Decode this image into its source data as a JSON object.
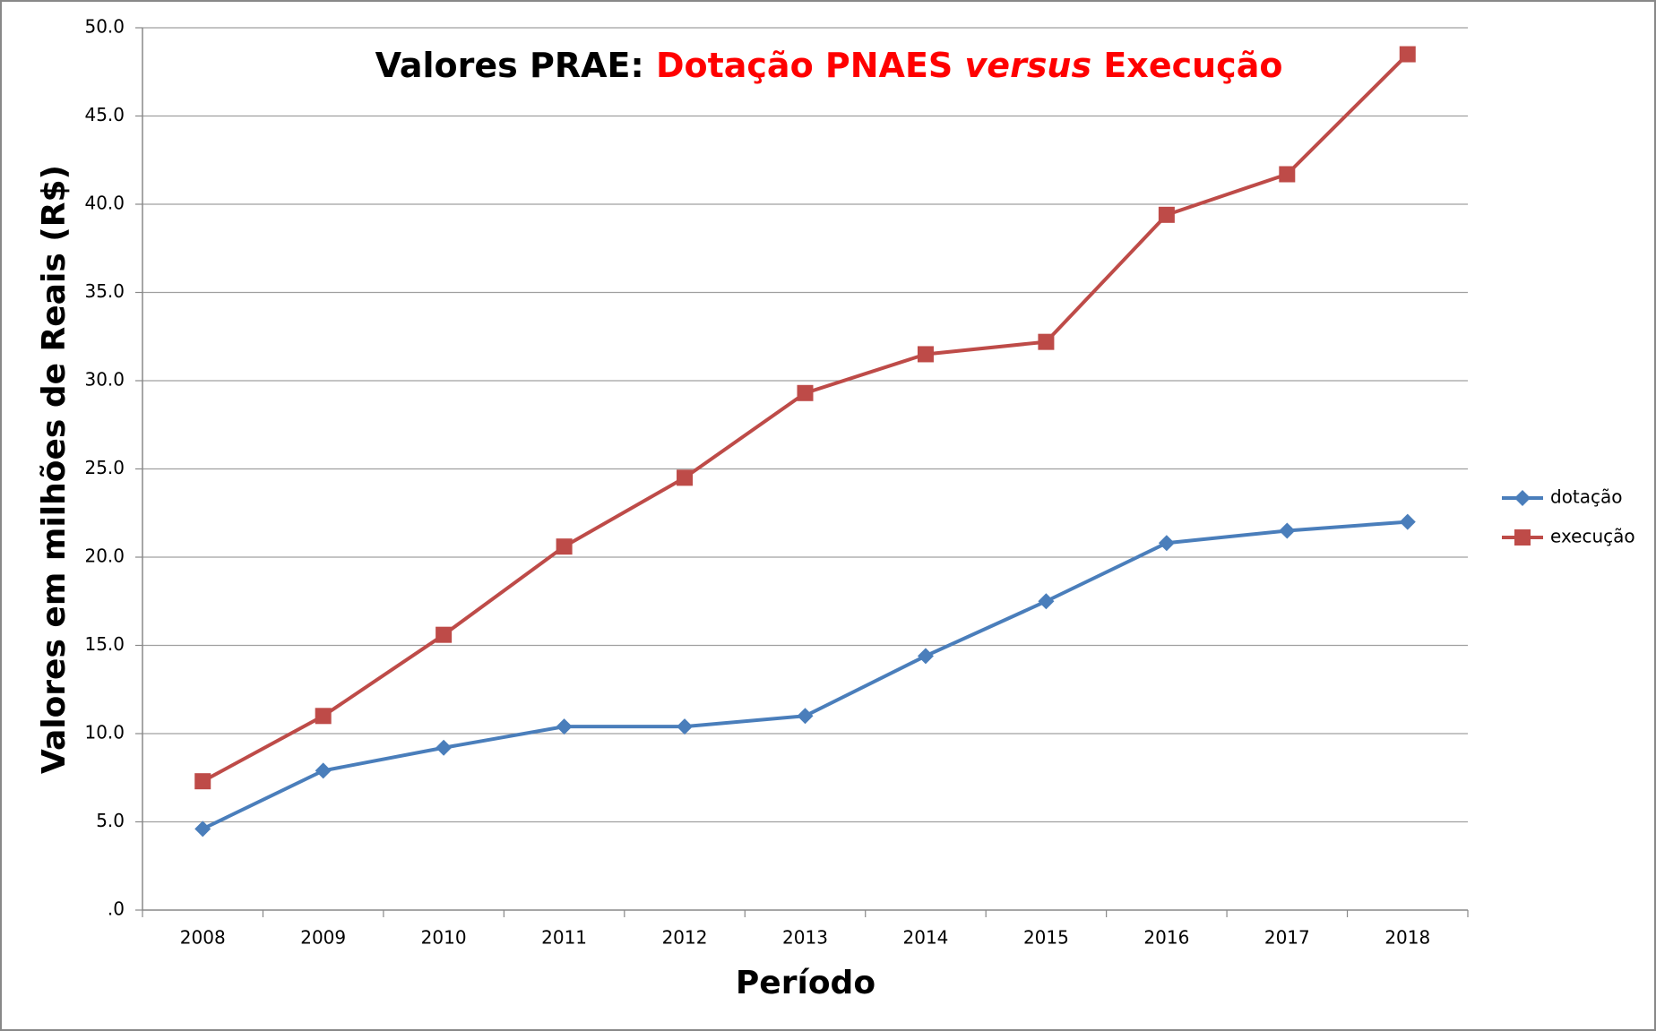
{
  "chart_data": {
    "type": "line",
    "title": [
      "Valores PRAE:",
      "Dotação PNAES",
      "versus",
      "Execução"
    ],
    "xlabel": "Período",
    "ylabel": "Valores em milhões de Reais (R$)",
    "categories": [
      "2008",
      "2009",
      "2010",
      "2011",
      "2012",
      "2013",
      "2014",
      "2015",
      "2016",
      "2017",
      "2018"
    ],
    "series": [
      {
        "name": "dotação",
        "color": "#4a7ebb",
        "marker": "diamond",
        "values": [
          4.6,
          7.9,
          9.2,
          10.4,
          10.4,
          11.0,
          14.4,
          17.5,
          20.8,
          21.5,
          22.0
        ]
      },
      {
        "name": "execução",
        "color": "#be4b48",
        "marker": "square",
        "values": [
          7.3,
          11.0,
          15.6,
          20.6,
          24.5,
          29.3,
          31.5,
          32.2,
          39.4,
          41.7,
          48.5
        ]
      }
    ],
    "ylim": [
      0,
      50
    ],
    "yticks": [
      {
        "value": 0,
        "label": ".0"
      },
      {
        "value": 5,
        "label": "5.0"
      },
      {
        "value": 10,
        "label": "10.0"
      },
      {
        "value": 15,
        "label": "15.0"
      },
      {
        "value": 20,
        "label": "20.0"
      },
      {
        "value": 25,
        "label": "25.0"
      },
      {
        "value": 30,
        "label": "30.0"
      },
      {
        "value": 35,
        "label": "35.0"
      },
      {
        "value": 40,
        "label": "40.0"
      },
      {
        "value": 45,
        "label": "45.0"
      },
      {
        "value": 50,
        "label": "50.0"
      }
    ],
    "grid": true,
    "legend": "right"
  }
}
